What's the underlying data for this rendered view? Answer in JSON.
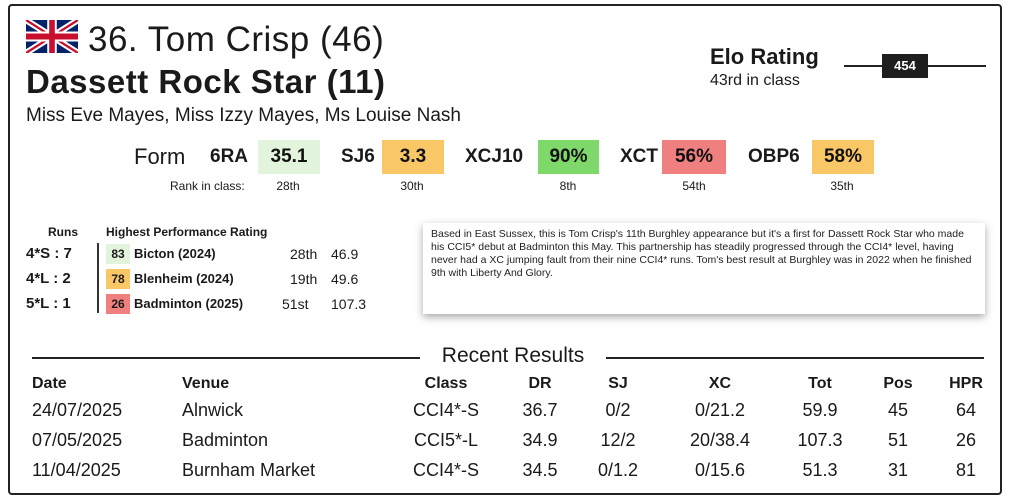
{
  "header": {
    "rider": "36. Tom Crisp (46)",
    "horse": "Dassett Rock Star (11)",
    "owners": "Miss Eve Mayes, Miss Izzy Mayes, Ms Louise Nash",
    "flag_icon": "uk-flag-icon"
  },
  "elo": {
    "title": "Elo Rating",
    "rank_text": "43rd in class",
    "value": "454"
  },
  "form": {
    "label": "Form",
    "rank_label": "Rank in class:",
    "items": [
      {
        "code": "6RA",
        "value": "35.1",
        "rank": "28th",
        "color": "#e3f4dc"
      },
      {
        "code": "SJ6",
        "value": "3.3",
        "rank": "30th",
        "color": "#f9c766"
      },
      {
        "code": "XCJ10",
        "value": "90%",
        "rank": "8th",
        "color": "#7fd86a"
      },
      {
        "code": "XCT",
        "value": "56%",
        "rank": "54th",
        "color": "#f08080"
      },
      {
        "code": "OBP6",
        "value": "58%",
        "rank": "35th",
        "color": "#f9c766"
      }
    ]
  },
  "runs": {
    "runs_header": "Runs",
    "hpr_header": "Highest Performance Rating",
    "rows": [
      {
        "level": "4*S",
        "count": "7",
        "score": "83",
        "score_color": "#e3f4dc",
        "venue": "Bicton (2024)",
        "pos": "28th",
        "value": "46.9"
      },
      {
        "level": "4*L",
        "count": "2",
        "score": "78",
        "score_color": "#f9c766",
        "venue": "Blenheim (2024)",
        "pos": "19th",
        "value": "49.6"
      },
      {
        "level": "5*L",
        "count": "1",
        "score": "26",
        "score_color": "#f08080",
        "venue": "Badminton (2025)",
        "pos": "51st",
        "value": "107.3"
      }
    ]
  },
  "note": "Based in East Sussex, this is Tom Crisp's 11th Burghley appearance but it's a first for Dassett Rock Star who made his CCI5* debut at Badminton this May. This partnership has steadily progressed through the CCI4* level, having never had a XC jumping fault from their nine CCI4* runs. Tom's best result at Burghley was in 2022 when he finished 9th with Liberty And Glory.",
  "recent": {
    "title": "Recent Results",
    "headers": {
      "date": "Date",
      "venue": "Venue",
      "class": "Class",
      "dr": "DR",
      "sj": "SJ",
      "xc": "XC",
      "tot": "Tot",
      "pos": "Pos",
      "hpr": "HPR"
    },
    "rows": [
      {
        "date": "24/07/2025",
        "venue": "Alnwick",
        "class": "CCI4*-S",
        "dr": "36.7",
        "sj": "0/2",
        "xc": "0/21.2",
        "tot": "59.9",
        "pos": "45",
        "hpr": "64"
      },
      {
        "date": "07/05/2025",
        "venue": "Badminton",
        "class": "CCI5*-L",
        "dr": "34.9",
        "sj": "12/2",
        "xc": "20/38.4",
        "tot": "107.3",
        "pos": "51",
        "hpr": "26"
      },
      {
        "date": "11/04/2025",
        "venue": "Burnham Market",
        "class": "CCI4*-S",
        "dr": "34.5",
        "sj": "0/1.2",
        "xc": "0/15.6",
        "tot": "51.3",
        "pos": "31",
        "hpr": "81"
      }
    ]
  }
}
